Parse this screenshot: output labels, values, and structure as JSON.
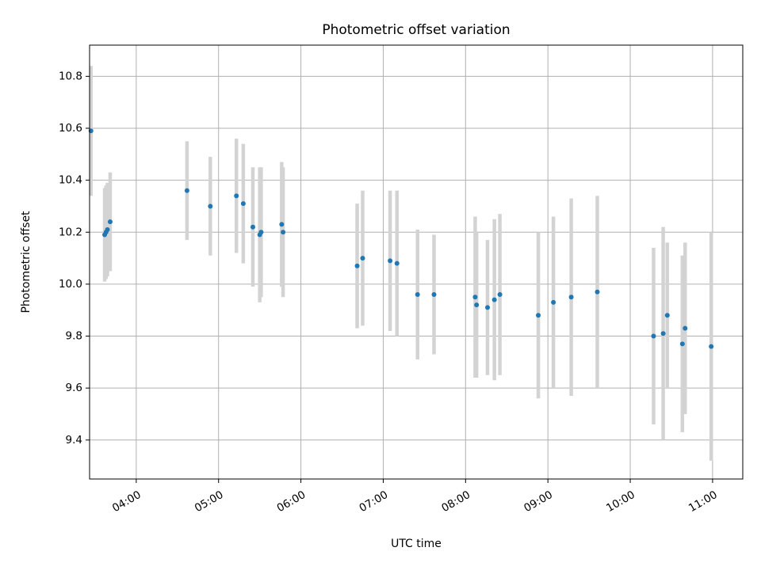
{
  "chart_data": {
    "type": "scatter",
    "title": "Photometric offset variation",
    "xlabel": "UTC time",
    "ylabel": "Photometric offset",
    "x_tick_labels": [
      "04:00",
      "05:00",
      "06:00",
      "07:00",
      "08:00",
      "09:00",
      "10:00",
      "11:00"
    ],
    "y_tick_labels": [
      "9.4",
      "9.6",
      "9.8",
      "10.0",
      "10.2",
      "10.4",
      "10.6",
      "10.8"
    ],
    "xlim": [
      "03:26",
      "11:22"
    ],
    "ylim": [
      9.25,
      10.92
    ],
    "grid": true,
    "marker_color": "#1f77b4",
    "errorbar_color": "#d3d3d3",
    "series": [
      {
        "points": [
          {
            "x": "03:27",
            "y": 10.59,
            "err": 0.25
          },
          {
            "x": "03:37",
            "y": 10.19,
            "err": 0.18
          },
          {
            "x": "03:38",
            "y": 10.2,
            "err": 0.18
          },
          {
            "x": "03:39",
            "y": 10.21,
            "err": 0.18
          },
          {
            "x": "03:41",
            "y": 10.24,
            "err": 0.19
          },
          {
            "x": "04:37",
            "y": 10.36,
            "err": 0.19
          },
          {
            "x": "04:54",
            "y": 10.3,
            "err": 0.19
          },
          {
            "x": "05:13",
            "y": 10.34,
            "err": 0.22
          },
          {
            "x": "05:18",
            "y": 10.31,
            "err": 0.23
          },
          {
            "x": "05:25",
            "y": 10.22,
            "err": 0.23
          },
          {
            "x": "05:30",
            "y": 10.19,
            "err": 0.26
          },
          {
            "x": "05:31",
            "y": 10.2,
            "err": 0.25
          },
          {
            "x": "05:46",
            "y": 10.23,
            "err": 0.24
          },
          {
            "x": "05:47",
            "y": 10.2,
            "err": 0.25
          },
          {
            "x": "06:41",
            "y": 10.07,
            "err": 0.24
          },
          {
            "x": "06:45",
            "y": 10.1,
            "err": 0.26
          },
          {
            "x": "07:05",
            "y": 10.09,
            "err": 0.27
          },
          {
            "x": "07:10",
            "y": 10.08,
            "err": 0.28
          },
          {
            "x": "07:25",
            "y": 9.96,
            "err": 0.25
          },
          {
            "x": "07:37",
            "y": 9.96,
            "err": 0.23
          },
          {
            "x": "08:07",
            "y": 9.95,
            "err": 0.31
          },
          {
            "x": "08:08",
            "y": 9.92,
            "err": 0.28
          },
          {
            "x": "08:16",
            "y": 9.91,
            "err": 0.26
          },
          {
            "x": "08:21",
            "y": 9.94,
            "err": 0.31
          },
          {
            "x": "08:25",
            "y": 9.96,
            "err": 0.31
          },
          {
            "x": "08:53",
            "y": 9.88,
            "err": 0.32
          },
          {
            "x": "09:04",
            "y": 9.93,
            "err": 0.33
          },
          {
            "x": "09:17",
            "y": 9.95,
            "err": 0.38
          },
          {
            "x": "09:36",
            "y": 9.97,
            "err": 0.37
          },
          {
            "x": "10:17",
            "y": 9.8,
            "err": 0.34
          },
          {
            "x": "10:24",
            "y": 9.81,
            "err": 0.41
          },
          {
            "x": "10:27",
            "y": 9.88,
            "err": 0.28
          },
          {
            "x": "10:38",
            "y": 9.77,
            "err": 0.34
          },
          {
            "x": "10:40",
            "y": 9.83,
            "err": 0.33
          },
          {
            "x": "10:59",
            "y": 9.76,
            "err": 0.44
          }
        ]
      }
    ]
  }
}
